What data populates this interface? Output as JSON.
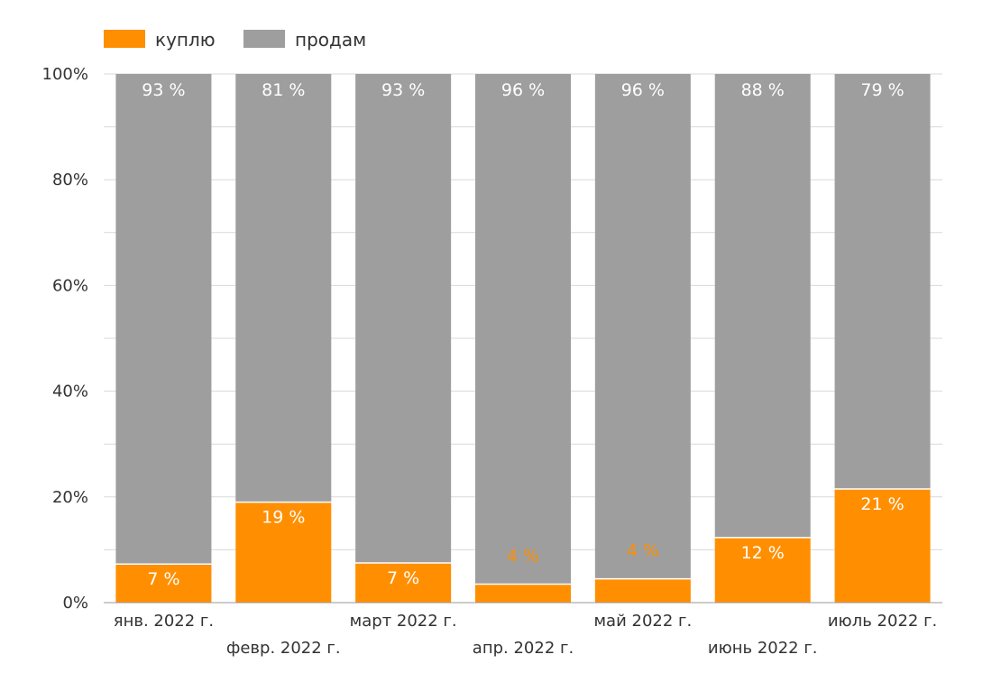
{
  "chart_data": {
    "type": "bar",
    "stacked": true,
    "normalized": true,
    "categories": [
      "янв. 2022 г.",
      "февр. 2022 г.",
      "март 2022 г.",
      "апр. 2022 г.",
      "май 2022 г.",
      "июнь 2022 г.",
      "июль 2022 г."
    ],
    "series": [
      {
        "name": "куплю",
        "color": "#ff8f00",
        "values": [
          7.3,
          19,
          7.5,
          3.5,
          4.5,
          12.3,
          21.5
        ],
        "labels": [
          "7 %",
          "19 %",
          "7 %",
          "4 %",
          "4 %",
          "12 %",
          "21 %"
        ]
      },
      {
        "name": "продам",
        "color": "#9e9e9e",
        "values": [
          92.7,
          81,
          92.5,
          96.5,
          95.5,
          87.7,
          78.5
        ],
        "labels": [
          "93 %",
          "81 %",
          "93 %",
          "96 %",
          "96 %",
          "88 %",
          "79 %"
        ]
      }
    ],
    "y_ticks": [
      "0%",
      "20%",
      "40%",
      "60%",
      "80%",
      "100%"
    ],
    "ylim": [
      0,
      100
    ],
    "grid": true,
    "legend": "top-left",
    "title": "",
    "xlabel": "",
    "ylabel": ""
  }
}
